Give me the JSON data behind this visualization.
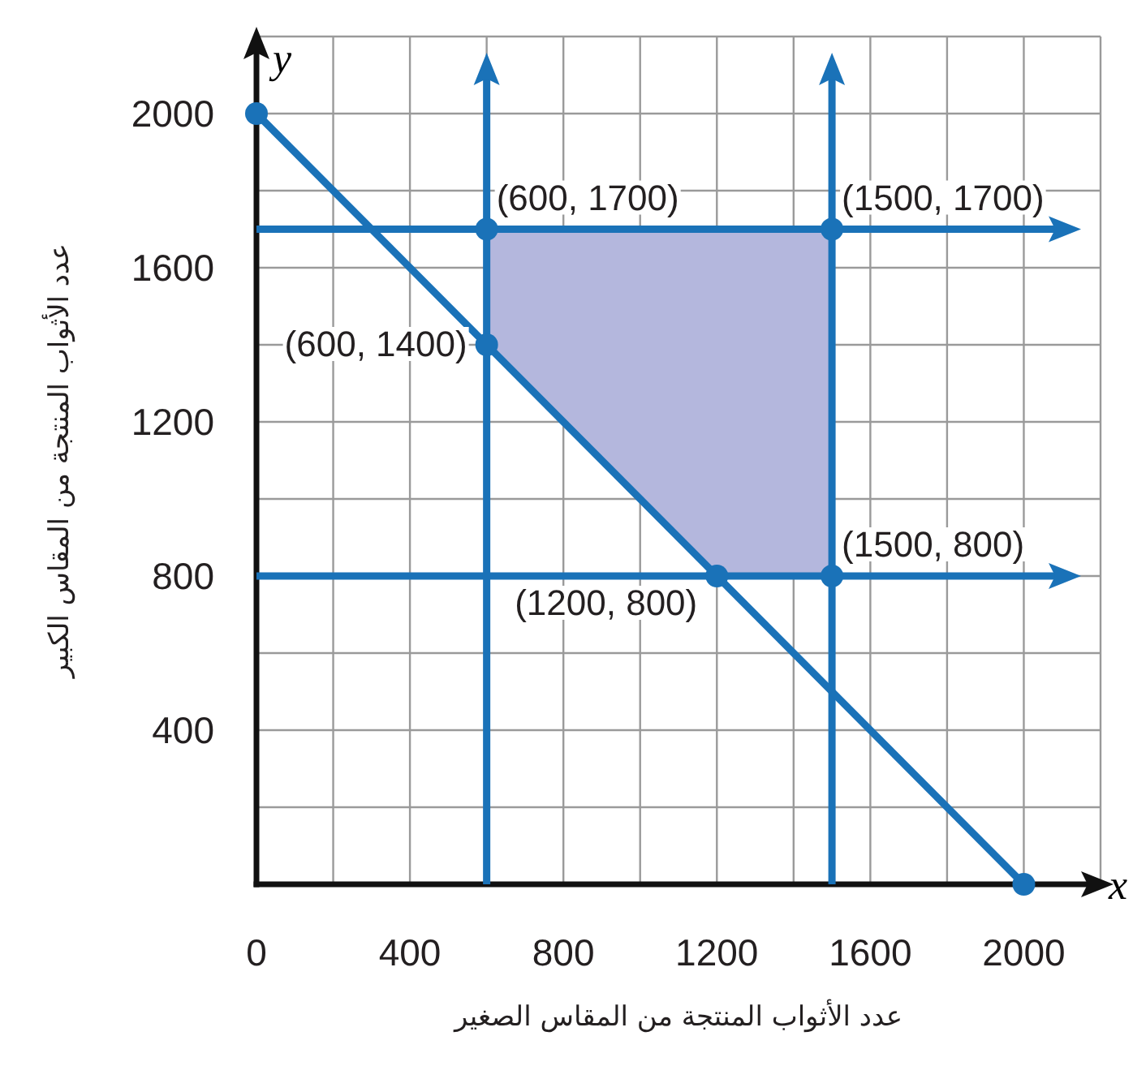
{
  "chart_data": {
    "type": "line",
    "xlabel": "عدد الأثواب المنتجة من المقاس الصغير",
    "ylabel": "عدد الأثواب المنتجة من المقاس الكبير",
    "annotations": [
      "x",
      "y"
    ],
    "xlim": [
      0,
      2200
    ],
    "ylim": [
      0,
      2200
    ],
    "xticks": [
      0,
      400,
      800,
      1200,
      1600,
      2000
    ],
    "yticks": [
      400,
      800,
      1200,
      1600,
      2000
    ],
    "grid": true,
    "series": [
      {
        "type": "area",
        "color": "#b4b7dd",
        "x": [
          600,
          600,
          1500,
          1500,
          1200
        ],
        "values": [
          1400,
          1700,
          1700,
          800,
          800
        ]
      },
      {
        "color": "#1a72b8",
        "marker": "circle",
        "x": [
          0,
          2000
        ],
        "values": [
          2000,
          0
        ]
      },
      {
        "type": "scatter",
        "color": "#1a72b8",
        "marker": "circle",
        "x": [
          600,
          1500,
          600,
          1500,
          1200
        ],
        "values": [
          1700,
          1700,
          1400,
          800,
          800
        ],
        "value_labels": [
          "(600, 1700)",
          "(1500, 1700)",
          "(600, 1400)",
          "(1500, 800)",
          "(1200, 800)"
        ]
      }
    ],
    "ref_lines": [
      {
        "axis": "x",
        "value": 600,
        "color": "#1a72b8"
      },
      {
        "axis": "x",
        "value": 1500,
        "color": "#1a72b8"
      },
      {
        "axis": "y",
        "value": 1700,
        "color": "#1a72b8"
      },
      {
        "axis": "y",
        "value": 800,
        "color": "#1a72b8"
      }
    ]
  }
}
